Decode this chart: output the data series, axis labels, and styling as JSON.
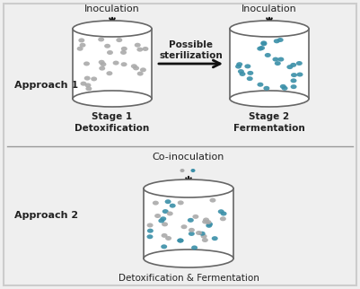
{
  "background_color": "#efefef",
  "border_color": "#cccccc",
  "text_color": "#222222",
  "arrow_color": "#111111",
  "divider_color": "#999999",
  "gray_dot_color": "#aaaaaa",
  "blue_dot_color": "#3a8fa8",
  "approach1_label": "Approach 1",
  "approach2_label": "Approach 2",
  "stage1_label": "Stage 1",
  "stage2_label": "Stage 2",
  "detox_label": "Detoxification",
  "ferm_label": "Fermentation",
  "coinoc_label": "Detoxification & Fermentation",
  "inoculation_label": "Inoculation",
  "coinoculation_label": "Co-inoculation",
  "possible_sterilization": "Possible\nsterilization"
}
